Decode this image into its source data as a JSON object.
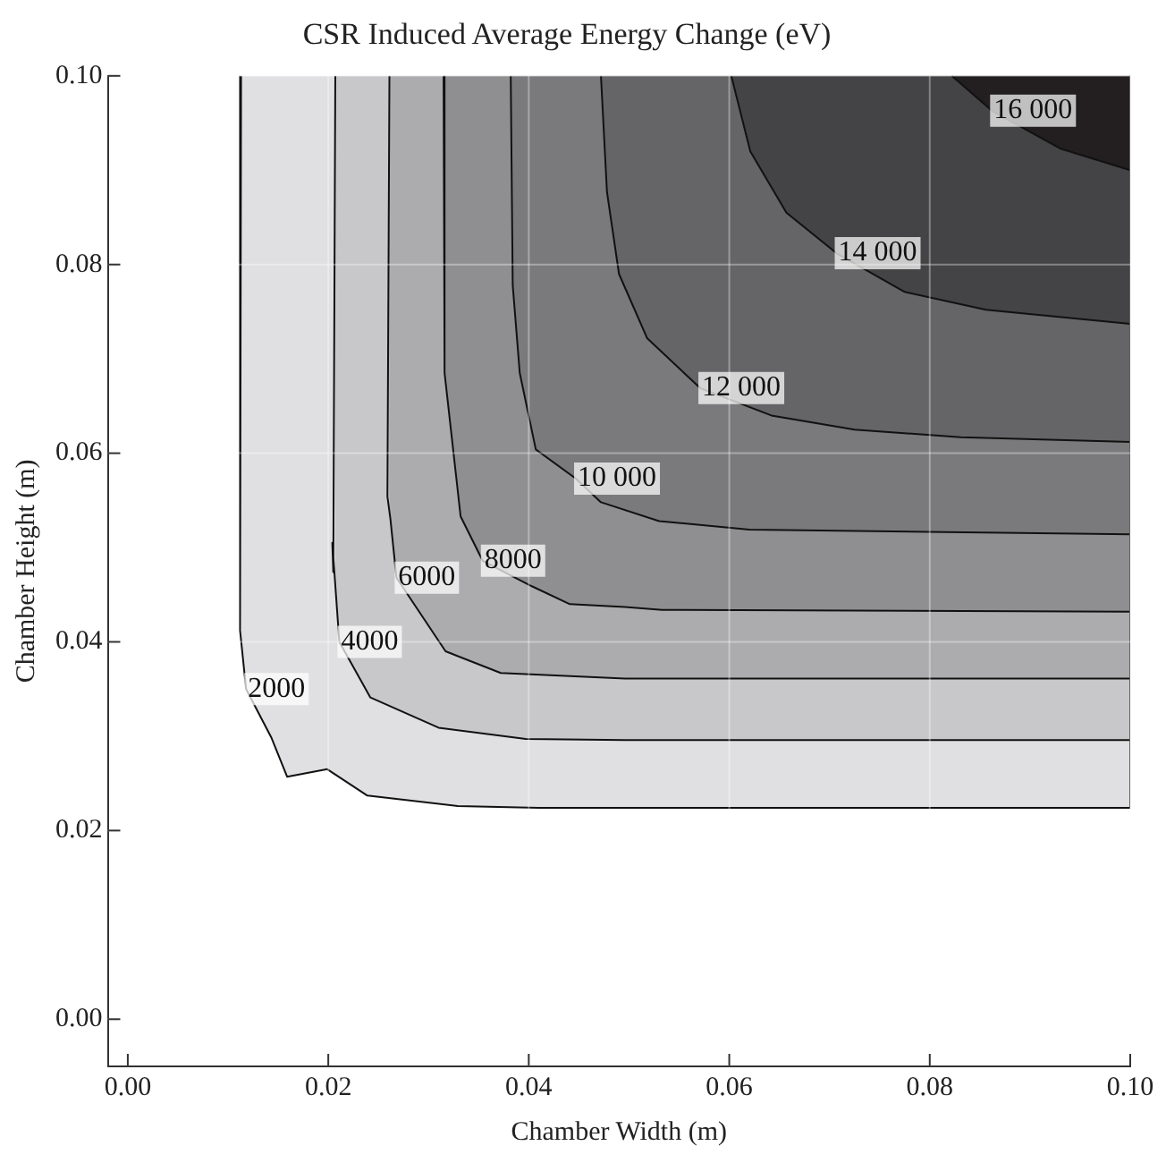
{
  "chart_data": {
    "type": "area",
    "title": "CSR Induced Average Energy Change (eV)",
    "xlabel": "Chamber Width (m)",
    "ylabel": "Chamber Height (m)",
    "xlim": [
      -0.002,
      0.1
    ],
    "ylim": [
      -0.005,
      0.1
    ],
    "xticks": [
      {
        "value": 0,
        "label": "0.00"
      },
      {
        "value": 0.02,
        "label": "0.02"
      },
      {
        "value": 0.04,
        "label": "0.04"
      },
      {
        "value": 0.06,
        "label": "0.06"
      },
      {
        "value": 0.08,
        "label": "0.08"
      },
      {
        "value": 0.1,
        "label": "0.10"
      }
    ],
    "yticks": [
      {
        "value": 0,
        "label": "0.00"
      },
      {
        "value": 0.02,
        "label": "0.02"
      },
      {
        "value": 0.04,
        "label": "0.04"
      },
      {
        "value": 0.06,
        "label": "0.06"
      },
      {
        "value": 0.08,
        "label": "0.08"
      },
      {
        "value": 0.1,
        "label": "0.10"
      }
    ],
    "grid": true,
    "legend": false,
    "series": [
      {
        "name": "2000",
        "color": "#e0e0e2",
        "x": [
          0.0113,
          0.0112,
          0.0118,
          0.0143,
          0.0159,
          0.0199,
          0.0239,
          0.0329,
          0.041,
          0.1,
          0.1
        ],
        "values": [
          0.1,
          0.0412,
          0.035,
          0.0299,
          0.0257,
          0.0265,
          0.0237,
          0.0226,
          0.0224,
          0.0224,
          0.1
        ]
      },
      {
        "name": "4000",
        "color": "#c8c8ca",
        "x": [
          0.0207,
          0.0205,
          0.0204,
          0.0211,
          0.0242,
          0.031,
          0.0397,
          0.0496,
          0.1,
          0.1
        ],
        "values": [
          0.1,
          0.0474,
          0.0505,
          0.04,
          0.0341,
          0.0309,
          0.0297,
          0.0296,
          0.0296,
          0.1
        ]
      },
      {
        "name": "6000",
        "color": "#acacae",
        "x": [
          0.0261,
          0.0259,
          0.0262,
          0.0268,
          0.0317,
          0.0372,
          0.0496,
          0.1,
          0.1
        ],
        "values": [
          0.1,
          0.0554,
          0.053,
          0.0468,
          0.039,
          0.0367,
          0.0361,
          0.0361,
          0.1
        ]
      },
      {
        "name": "8000",
        "color": "#8f8f91",
        "x": [
          0.0315,
          0.0316,
          0.0332,
          0.0354,
          0.0403,
          0.0441,
          0.0496,
          0.0533,
          0.1,
          0.1
        ],
        "values": [
          0.1,
          0.0685,
          0.0533,
          0.0486,
          0.0459,
          0.044,
          0.0437,
          0.0434,
          0.0432,
          0.1
        ]
      },
      {
        "name": "10 000",
        "color": "#7a7a7c",
        "x": [
          0.0382,
          0.0384,
          0.0391,
          0.0407,
          0.0447,
          0.0472,
          0.053,
          0.062,
          0.1,
          0.1
        ],
        "values": [
          0.1,
          0.0778,
          0.0685,
          0.0604,
          0.0573,
          0.0548,
          0.0528,
          0.0519,
          0.0514,
          0.1
        ]
      },
      {
        "name": "12 000",
        "color": "#656567",
        "x": [
          0.0472,
          0.0478,
          0.049,
          0.0518,
          0.0571,
          0.0642,
          0.0725,
          0.0831,
          0.1,
          0.1
        ],
        "values": [
          0.1,
          0.0877,
          0.079,
          0.0722,
          0.0669,
          0.064,
          0.0625,
          0.0617,
          0.0612,
          0.1
        ]
      },
      {
        "name": "14 000",
        "color": "#444446",
        "x": [
          0.0602,
          0.0621,
          0.0657,
          0.0707,
          0.0775,
          0.0856,
          0.1,
          0.1
        ],
        "values": [
          0.1,
          0.092,
          0.0855,
          0.0812,
          0.0771,
          0.0752,
          0.0737,
          0.1
        ]
      },
      {
        "name": "16 000",
        "color": "#231f20",
        "x": [
          0.0822,
          0.0862,
          0.093,
          0.1,
          0.1
        ],
        "values": [
          0.1,
          0.0963,
          0.0923,
          0.09,
          0.1
        ]
      }
    ]
  }
}
